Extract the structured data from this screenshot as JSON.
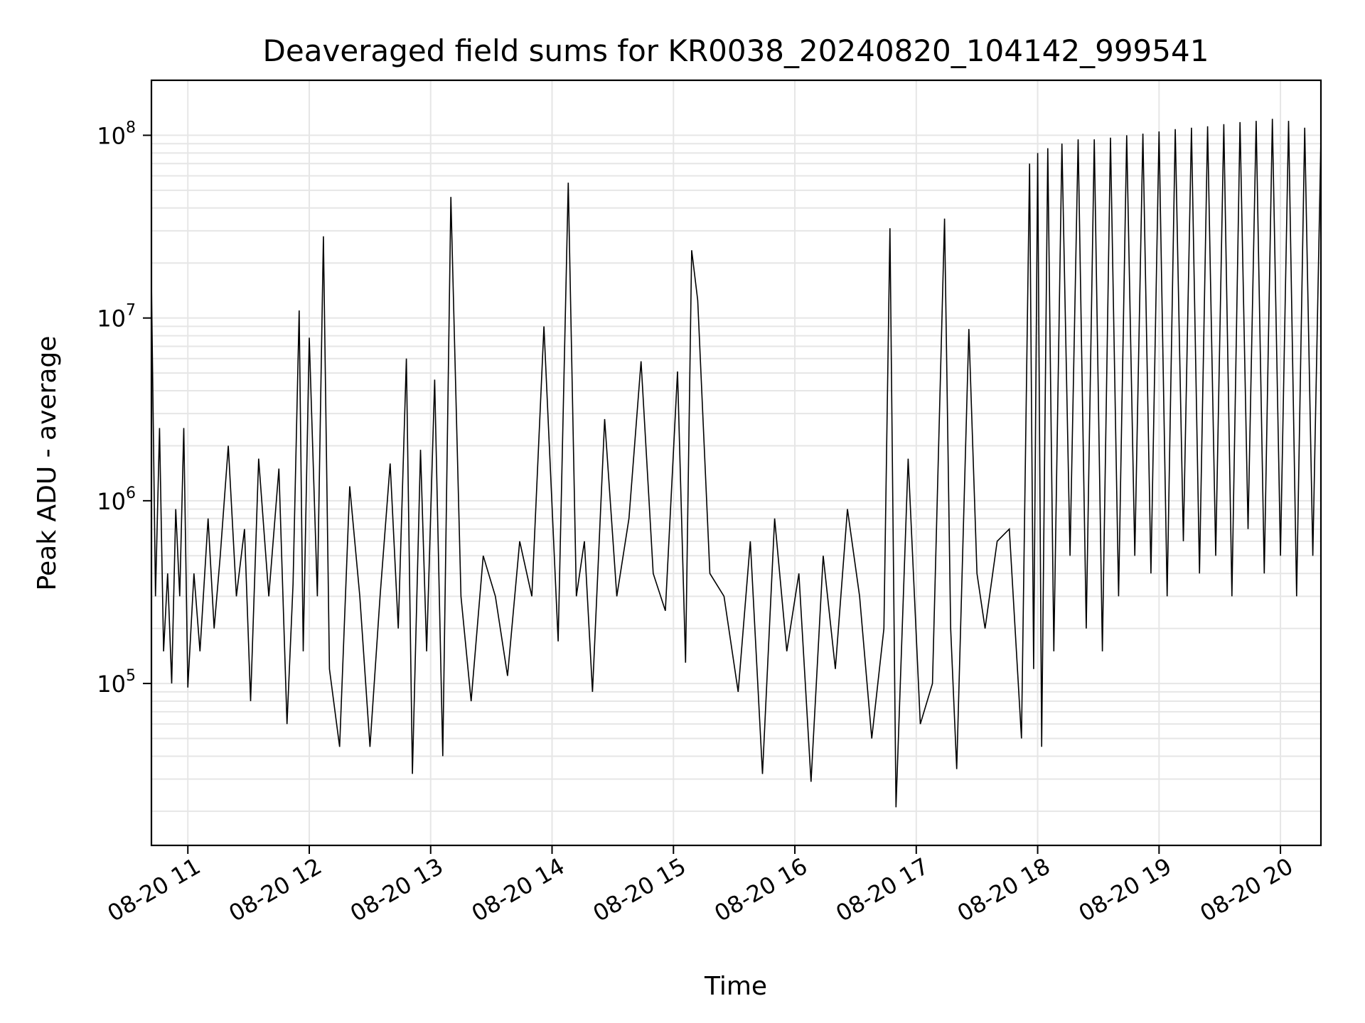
{
  "chart_data": {
    "type": "line",
    "title": "Deaveraged field sums for KR0038_20240820_104142_999541",
    "xlabel": "Time",
    "ylabel": "Peak ADU - average",
    "x_scale": "time",
    "y_scale": "log",
    "xlim": [
      "2024-08-20 10:42",
      "2024-08-20 20:20"
    ],
    "ylim": [
      13000,
      200000000
    ],
    "x_ticks": [
      "08-20 11",
      "08-20 12",
      "08-20 13",
      "08-20 14",
      "08-20 15",
      "08-20 16",
      "08-20 17",
      "08-20 18",
      "08-20 19",
      "08-20 20"
    ],
    "y_ticks": [
      {
        "value": 100000,
        "base": "10",
        "exp": "5"
      },
      {
        "value": 1000000,
        "base": "10",
        "exp": "6"
      },
      {
        "value": 10000000,
        "base": "10",
        "exp": "7"
      },
      {
        "value": 100000000,
        "base": "10",
        "exp": "8"
      }
    ],
    "grid": true,
    "line_color": "#000000",
    "grid_color": "#e6e6e6",
    "series": [
      {
        "x": [
          "2024-08-20 10:42",
          "2024-08-20 10:44",
          "2024-08-20 10:46",
          "2024-08-20 10:48",
          "2024-08-20 10:50",
          "2024-08-20 10:52",
          "2024-08-20 10:54",
          "2024-08-20 10:56",
          "2024-08-20 10:58",
          "2024-08-20 11:00",
          "2024-08-20 11:03",
          "2024-08-20 11:06",
          "2024-08-20 11:10",
          "2024-08-20 11:13",
          "2024-08-20 11:16",
          "2024-08-20 11:20",
          "2024-08-20 11:24",
          "2024-08-20 11:28",
          "2024-08-20 11:31",
          "2024-08-20 11:35",
          "2024-08-20 11:40",
          "2024-08-20 11:45",
          "2024-08-20 11:49",
          "2024-08-20 11:52",
          "2024-08-20 11:55",
          "2024-08-20 11:57",
          "2024-08-20 12:00",
          "2024-08-20 12:04",
          "2024-08-20 12:07",
          "2024-08-20 12:10",
          "2024-08-20 12:15",
          "2024-08-20 12:20",
          "2024-08-20 12:25",
          "2024-08-20 12:30",
          "2024-08-20 12:35",
          "2024-08-20 12:40",
          "2024-08-20 12:44",
          "2024-08-20 12:48",
          "2024-08-20 12:51",
          "2024-08-20 12:55",
          "2024-08-20 12:58",
          "2024-08-20 13:02",
          "2024-08-20 13:06",
          "2024-08-20 13:10",
          "2024-08-20 13:15",
          "2024-08-20 13:20",
          "2024-08-20 13:26",
          "2024-08-20 13:32",
          "2024-08-20 13:38",
          "2024-08-20 13:44",
          "2024-08-20 13:50",
          "2024-08-20 13:56",
          "2024-08-20 14:03",
          "2024-08-20 14:08",
          "2024-08-20 14:12",
          "2024-08-20 14:16",
          "2024-08-20 14:20",
          "2024-08-20 14:26",
          "2024-08-20 14:32",
          "2024-08-20 14:38",
          "2024-08-20 14:44",
          "2024-08-20 14:50",
          "2024-08-20 14:56",
          "2024-08-20 15:02",
          "2024-08-20 15:06",
          "2024-08-20 15:09",
          "2024-08-20 15:12",
          "2024-08-20 15:18",
          "2024-08-20 15:25",
          "2024-08-20 15:32",
          "2024-08-20 15:38",
          "2024-08-20 15:44",
          "2024-08-20 15:50",
          "2024-08-20 15:56",
          "2024-08-20 16:02",
          "2024-08-20 16:08",
          "2024-08-20 16:14",
          "2024-08-20 16:20",
          "2024-08-20 16:26",
          "2024-08-20 16:32",
          "2024-08-20 16:38",
          "2024-08-20 16:44",
          "2024-08-20 16:47",
          "2024-08-20 16:50",
          "2024-08-20 16:56",
          "2024-08-20 17:02",
          "2024-08-20 17:08",
          "2024-08-20 17:14",
          "2024-08-20 17:17",
          "2024-08-20 17:20",
          "2024-08-20 17:26",
          "2024-08-20 17:30",
          "2024-08-20 17:34",
          "2024-08-20 17:40",
          "2024-08-20 17:46",
          "2024-08-20 17:52",
          "2024-08-20 17:56",
          "2024-08-20 17:58",
          "2024-08-20 18:00",
          "2024-08-20 18:02",
          "2024-08-20 18:05",
          "2024-08-20 18:08",
          "2024-08-20 18:12",
          "2024-08-20 18:16",
          "2024-08-20 18:20",
          "2024-08-20 18:24",
          "2024-08-20 18:28",
          "2024-08-20 18:32",
          "2024-08-20 18:36",
          "2024-08-20 18:40",
          "2024-08-20 18:44",
          "2024-08-20 18:48",
          "2024-08-20 18:52",
          "2024-08-20 18:56",
          "2024-08-20 19:00",
          "2024-08-20 19:04",
          "2024-08-20 19:08",
          "2024-08-20 19:12",
          "2024-08-20 19:16",
          "2024-08-20 19:20",
          "2024-08-20 19:24",
          "2024-08-20 19:28",
          "2024-08-20 19:32",
          "2024-08-20 19:36",
          "2024-08-20 19:40",
          "2024-08-20 19:44",
          "2024-08-20 19:48",
          "2024-08-20 19:52",
          "2024-08-20 19:56",
          "2024-08-20 20:00",
          "2024-08-20 20:04",
          "2024-08-20 20:08",
          "2024-08-20 20:12",
          "2024-08-20 20:16",
          "2024-08-20 20:20"
        ],
        "values": [
          16000000,
          300000,
          2500000,
          150000,
          400000,
          100000,
          900000,
          300000,
          2500000,
          95000,
          400000,
          150000,
          800000,
          200000,
          500000,
          2000000,
          300000,
          700000,
          80000,
          1700000,
          300000,
          1500000,
          60000,
          350000,
          11000000,
          150000,
          7800000,
          300000,
          28000000,
          120000,
          45000,
          1200000,
          300000,
          45000,
          300000,
          1600000,
          200000,
          6000000,
          32000,
          1900000,
          150000,
          4600000,
          40000,
          46000000,
          300000,
          80000,
          500000,
          300000,
          110000,
          600000,
          300000,
          9000000,
          170000,
          55000000,
          300000,
          600000,
          90000,
          2800000,
          300000,
          800000,
          5800000,
          400000,
          250000,
          5100000,
          130000,
          23500000,
          12500000,
          400000,
          300000,
          90000,
          600000,
          32000,
          800000,
          150000,
          400000,
          29000,
          500000,
          120000,
          900000,
          300000,
          50000,
          200000,
          31000000,
          21000,
          1700000,
          60000,
          100000,
          35000000,
          200000,
          34000,
          8700000,
          400000,
          200000,
          600000,
          700000,
          50000,
          70000000,
          120000,
          80000000,
          45000,
          85000000,
          150000,
          90000000,
          500000,
          95000000,
          200000,
          95000000,
          150000,
          97000000,
          300000,
          100000000,
          500000,
          102000000,
          400000,
          105000000,
          300000,
          108000000,
          600000,
          110000000,
          400000,
          112000000,
          500000,
          115000000,
          300000,
          118000000,
          700000,
          120000000,
          400000,
          123000000,
          500000,
          120000000,
          300000,
          110000000,
          500000,
          95000000
        ]
      }
    ]
  }
}
